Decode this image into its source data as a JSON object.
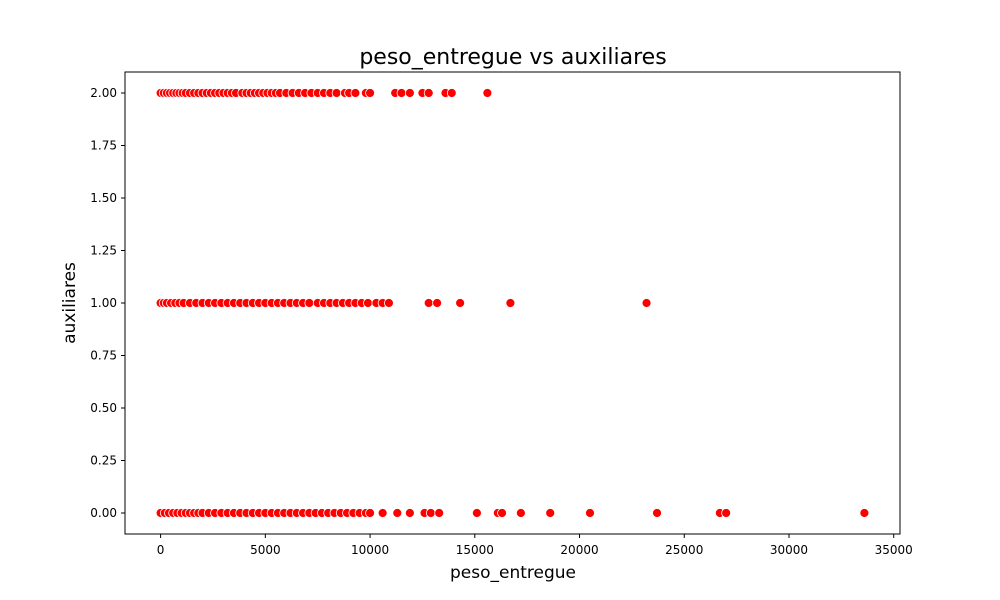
{
  "chart_data": {
    "type": "scatter",
    "title": "peso_entregue vs auxiliares",
    "xlabel": "peso_entregue",
    "ylabel": "auxiliares",
    "xlim": [
      -1700,
      35300
    ],
    "ylim": [
      -0.1,
      2.1
    ],
    "xticks": [
      0,
      5000,
      10000,
      15000,
      20000,
      25000,
      30000,
      35000
    ],
    "xtick_labels": [
      "0",
      "5000",
      "10000",
      "15000",
      "20000",
      "25000",
      "30000",
      "35000"
    ],
    "yticks": [
      0.0,
      0.25,
      0.5,
      0.75,
      1.0,
      1.25,
      1.5,
      1.75,
      2.0
    ],
    "ytick_labels": [
      "0.00",
      "0.25",
      "0.50",
      "0.75",
      "1.00",
      "1.25",
      "1.50",
      "1.75",
      "2.00"
    ],
    "grid": false,
    "marker_color": "#ff0000",
    "marker_edge_color": "#ffffff",
    "series": [
      {
        "points": [
          [
            0,
            2
          ],
          [
            150,
            2
          ],
          [
            300,
            2
          ],
          [
            450,
            2
          ],
          [
            600,
            2
          ],
          [
            750,
            2
          ],
          [
            900,
            2
          ],
          [
            1050,
            2
          ],
          [
            1200,
            2
          ],
          [
            1400,
            2
          ],
          [
            1600,
            2
          ],
          [
            1800,
            2
          ],
          [
            2000,
            2
          ],
          [
            2200,
            2
          ],
          [
            2400,
            2
          ],
          [
            2600,
            2
          ],
          [
            2800,
            2
          ],
          [
            3000,
            2
          ],
          [
            3200,
            2
          ],
          [
            3400,
            2
          ],
          [
            3600,
            2
          ],
          [
            3900,
            2
          ],
          [
            4100,
            2
          ],
          [
            4300,
            2
          ],
          [
            4500,
            2
          ],
          [
            4700,
            2
          ],
          [
            4900,
            2
          ],
          [
            5100,
            2
          ],
          [
            5300,
            2
          ],
          [
            5500,
            2
          ],
          [
            5700,
            2
          ],
          [
            6000,
            2
          ],
          [
            6300,
            2
          ],
          [
            6600,
            2
          ],
          [
            6900,
            2
          ],
          [
            7200,
            2
          ],
          [
            7500,
            2
          ],
          [
            7800,
            2
          ],
          [
            8100,
            2
          ],
          [
            8400,
            2
          ],
          [
            8800,
            2
          ],
          [
            9000,
            2
          ],
          [
            9300,
            2
          ],
          [
            9800,
            2
          ],
          [
            10000,
            2
          ],
          [
            11200,
            2
          ],
          [
            11500,
            2
          ],
          [
            11900,
            2
          ],
          [
            12500,
            2
          ],
          [
            12800,
            2
          ],
          [
            13600,
            2
          ],
          [
            13900,
            2
          ],
          [
            15600,
            2
          ],
          [
            0,
            1
          ],
          [
            150,
            1
          ],
          [
            300,
            1
          ],
          [
            500,
            1
          ],
          [
            700,
            1
          ],
          [
            900,
            1
          ],
          [
            1100,
            1
          ],
          [
            1400,
            1
          ],
          [
            1700,
            1
          ],
          [
            2000,
            1
          ],
          [
            2300,
            1
          ],
          [
            2600,
            1
          ],
          [
            2900,
            1
          ],
          [
            3200,
            1
          ],
          [
            3500,
            1
          ],
          [
            3800,
            1
          ],
          [
            4100,
            1
          ],
          [
            4400,
            1
          ],
          [
            4700,
            1
          ],
          [
            5000,
            1
          ],
          [
            5300,
            1
          ],
          [
            5600,
            1
          ],
          [
            5900,
            1
          ],
          [
            6200,
            1
          ],
          [
            6500,
            1
          ],
          [
            6800,
            1
          ],
          [
            7100,
            1
          ],
          [
            7500,
            1
          ],
          [
            7800,
            1
          ],
          [
            8100,
            1
          ],
          [
            8400,
            1
          ],
          [
            8700,
            1
          ],
          [
            9000,
            1
          ],
          [
            9300,
            1
          ],
          [
            9600,
            1
          ],
          [
            9900,
            1
          ],
          [
            10300,
            1
          ],
          [
            10600,
            1
          ],
          [
            10900,
            1
          ],
          [
            12800,
            1
          ],
          [
            13200,
            1
          ],
          [
            14300,
            1
          ],
          [
            16700,
            1
          ],
          [
            23200,
            1
          ],
          [
            0,
            0
          ],
          [
            200,
            0
          ],
          [
            400,
            0
          ],
          [
            600,
            0
          ],
          [
            800,
            0
          ],
          [
            1000,
            0
          ],
          [
            1200,
            0
          ],
          [
            1400,
            0
          ],
          [
            1600,
            0
          ],
          [
            1800,
            0
          ],
          [
            2000,
            0
          ],
          [
            2300,
            0
          ],
          [
            2600,
            0
          ],
          [
            2900,
            0
          ],
          [
            3200,
            0
          ],
          [
            3500,
            0
          ],
          [
            3800,
            0
          ],
          [
            4100,
            0
          ],
          [
            4400,
            0
          ],
          [
            4700,
            0
          ],
          [
            5000,
            0
          ],
          [
            5300,
            0
          ],
          [
            5600,
            0
          ],
          [
            5900,
            0
          ],
          [
            6200,
            0
          ],
          [
            6500,
            0
          ],
          [
            6800,
            0
          ],
          [
            7100,
            0
          ],
          [
            7400,
            0
          ],
          [
            7700,
            0
          ],
          [
            8000,
            0
          ],
          [
            8300,
            0
          ],
          [
            8600,
            0
          ],
          [
            8900,
            0
          ],
          [
            9200,
            0
          ],
          [
            9500,
            0
          ],
          [
            9800,
            0
          ],
          [
            10000,
            0
          ],
          [
            10600,
            0
          ],
          [
            11300,
            0
          ],
          [
            11900,
            0
          ],
          [
            12600,
            0
          ],
          [
            12900,
            0
          ],
          [
            13300,
            0
          ],
          [
            15100,
            0
          ],
          [
            16100,
            0
          ],
          [
            16300,
            0
          ],
          [
            17200,
            0
          ],
          [
            18600,
            0
          ],
          [
            20500,
            0
          ],
          [
            23700,
            0
          ],
          [
            26700,
            0
          ],
          [
            27000,
            0
          ],
          [
            33600,
            0
          ]
        ]
      }
    ]
  }
}
